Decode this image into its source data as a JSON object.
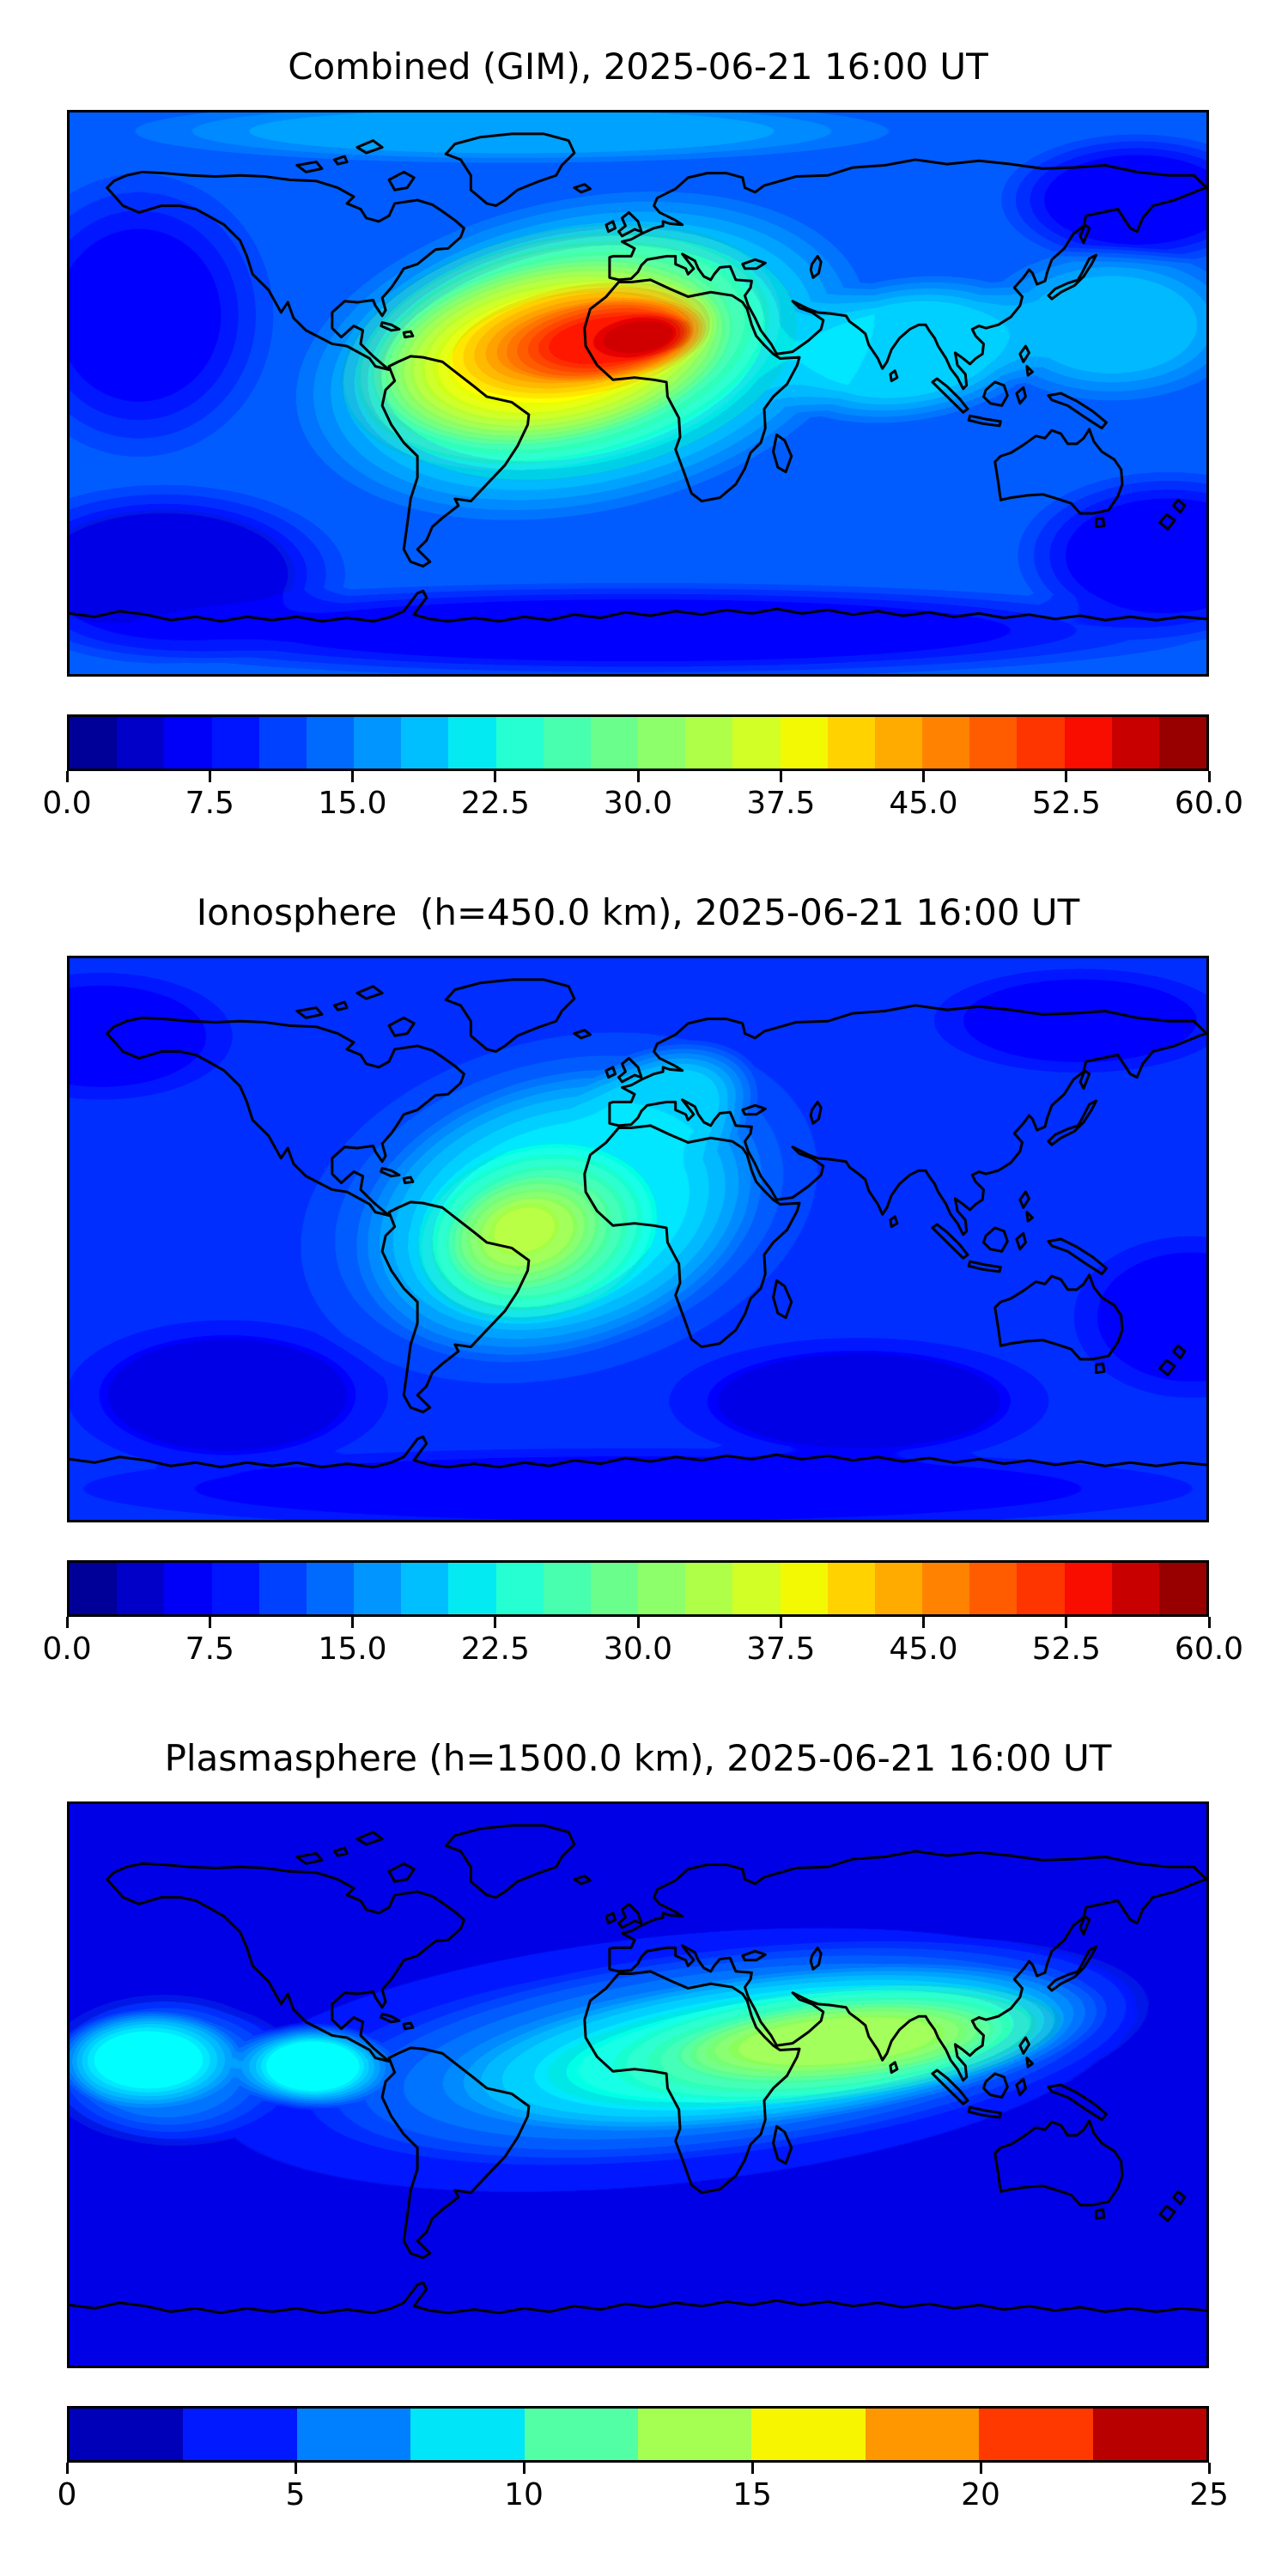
{
  "chart_data": [
    {
      "type": "heatmap",
      "variant": "filled_contour_world_map",
      "title": "Combined (GIM), 2025-06-21 16:00 UT",
      "colormap": "jet",
      "colormap_hex_anchors": [
        "#000080",
        "#0000FF",
        "#00FFFF",
        "#7CFF79",
        "#FFFF00",
        "#FF0000",
        "#800000"
      ],
      "extent": {
        "lon": [
          -180,
          180
        ],
        "lat": [
          -90,
          90
        ]
      },
      "grid": false,
      "coastlines": true,
      "colorbar": {
        "min": 0,
        "max": 60,
        "segments": 24,
        "orientation": "horizontal",
        "ticks": [
          {
            "v": 0,
            "label": "0.0"
          },
          {
            "v": 7.5,
            "label": "7.5"
          },
          {
            "v": 15,
            "label": "15.0"
          },
          {
            "v": 22.5,
            "label": "22.5"
          },
          {
            "v": 30,
            "label": "30.0"
          },
          {
            "v": 37.5,
            "label": "37.5"
          },
          {
            "v": 45,
            "label": "45.0"
          },
          {
            "v": 52.5,
            "label": "52.5"
          },
          {
            "v": 60,
            "label": "60.0"
          }
        ]
      },
      "base_value": 13,
      "peak": {
        "value_approx": 58,
        "lon_approx": -10,
        "lat_approx": 18
      },
      "description": "Total electron content: intense crest (~55-60) over equatorial Atlantic, northern South America and North Africa; low values (~3-8) near poles and night-side Pacific.",
      "approx_field": [
        {
          "lon": -158,
          "lat": 25,
          "rx": 45,
          "ry": 48,
          "tilt": 0,
          "value": 8.5
        },
        {
          "lon": -150,
          "lat": -58,
          "rx": 60,
          "ry": 30,
          "tilt": 0,
          "value": 5
        },
        {
          "lon": 168,
          "lat": -52,
          "rx": 50,
          "ry": 28,
          "tilt": 0,
          "value": 6
        },
        {
          "lon": 158,
          "lat": 62,
          "rx": 45,
          "ry": 22,
          "tilt": 0,
          "value": 7
        },
        {
          "lon": 0,
          "lat": -76,
          "rx": 190,
          "ry": 16,
          "tilt": 0,
          "value": 8
        },
        {
          "lon": -40,
          "lat": 84,
          "rx": 130,
          "ry": 11,
          "tilt": 0,
          "value": 17
        },
        {
          "lon": 150,
          "lat": 22,
          "rx": 45,
          "ry": 26,
          "tilt": 0,
          "value": 18
        },
        {
          "lon": 85,
          "lat": 14,
          "rx": 48,
          "ry": 24,
          "tilt": -8,
          "value": 20
        },
        {
          "lon": -18,
          "lat": 12,
          "rx": 95,
          "ry": 52,
          "tilt": -12,
          "value": 23
        },
        {
          "lon": -25,
          "lat": 15,
          "rx": 72,
          "ry": 38,
          "tilt": -12,
          "value": 30
        },
        {
          "lon": -27,
          "lat": 13,
          "rx": 58,
          "ry": 29,
          "tilt": -10,
          "value": 38
        },
        {
          "lon": -18,
          "lat": 17,
          "rx": 45,
          "ry": 19,
          "tilt": -10,
          "value": 46
        },
        {
          "lon": -10,
          "lat": 17,
          "rx": 33,
          "ry": 13,
          "tilt": -8,
          "value": 52
        },
        {
          "lon": 0,
          "lat": 18,
          "rx": 18,
          "ry": 8,
          "tilt": -8,
          "value": 56
        }
      ]
    },
    {
      "type": "heatmap",
      "variant": "filled_contour_world_map",
      "title": "Ionosphere  (h=450.0 km), 2025-06-21 16:00 UT",
      "colormap": "jet",
      "extent": {
        "lon": [
          -180,
          180
        ],
        "lat": [
          -90,
          90
        ]
      },
      "grid": false,
      "coastlines": true,
      "colorbar": {
        "min": 0,
        "max": 60,
        "segments": 24,
        "orientation": "horizontal",
        "ticks": [
          {
            "v": 0,
            "label": "0.0"
          },
          {
            "v": 7.5,
            "label": "7.5"
          },
          {
            "v": 15,
            "label": "15.0"
          },
          {
            "v": 22.5,
            "label": "22.5"
          },
          {
            "v": 30,
            "label": "30.0"
          },
          {
            "v": 37.5,
            "label": "37.5"
          },
          {
            "v": 45,
            "label": "45.0"
          },
          {
            "v": 52.5,
            "label": "52.5"
          },
          {
            "v": 60,
            "label": "60.0"
          }
        ]
      },
      "base_value": 10.5,
      "peak": {
        "value_approx": 34,
        "lon_approx": -36,
        "lat_approx": 2
      },
      "description": "Ionospheric slab: moderate maximum (~32-35, yellow) over equatorial Atlantic between Brazil and West Africa, cyan halo reaching Europe; dark blue (~4-6) at poles and southern oceans.",
      "approx_field": [
        {
          "lon": -170,
          "lat": 65,
          "rx": 45,
          "ry": 22,
          "tilt": 0,
          "value": 7
        },
        {
          "lon": 140,
          "lat": 70,
          "rx": 50,
          "ry": 18,
          "tilt": 0,
          "value": 6
        },
        {
          "lon": -130,
          "lat": -50,
          "rx": 55,
          "ry": 26,
          "tilt": 0,
          "value": 5
        },
        {
          "lon": 70,
          "lat": -52,
          "rx": 65,
          "ry": 22,
          "tilt": 0,
          "value": 5
        },
        {
          "lon": 175,
          "lat": -25,
          "rx": 40,
          "ry": 28,
          "tilt": 0,
          "value": 7
        },
        {
          "lon": 0,
          "lat": -80,
          "rx": 190,
          "ry": 14,
          "tilt": 0,
          "value": 6
        },
        {
          "lon": -25,
          "lat": 10,
          "rx": 90,
          "ry": 58,
          "tilt": -15,
          "value": 15
        },
        {
          "lon": 8,
          "lat": 42,
          "rx": 32,
          "ry": 20,
          "tilt": -20,
          "value": 19
        },
        {
          "lon": -25,
          "lat": 8,
          "rx": 68,
          "ry": 45,
          "tilt": -18,
          "value": 21
        },
        {
          "lon": -32,
          "lat": 2,
          "rx": 42,
          "ry": 30,
          "tilt": -15,
          "value": 27
        },
        {
          "lon": -35,
          "lat": 2,
          "rx": 26,
          "ry": 18,
          "tilt": -15,
          "value": 32
        },
        {
          "lon": -36,
          "lat": 3,
          "rx": 14,
          "ry": 10,
          "tilt": -15,
          "value": 34
        }
      ]
    },
    {
      "type": "heatmap",
      "variant": "filled_contour_world_map",
      "title": "Plasmasphere (h=1500.0 km), 2025-06-21 16:00 UT",
      "colormap": "jet",
      "extent": {
        "lon": [
          -180,
          180
        ],
        "lat": [
          -90,
          90
        ]
      },
      "grid": false,
      "coastlines": true,
      "colorbar": {
        "min": 0,
        "max": 25,
        "segments": 10,
        "orientation": "horizontal",
        "ticks": [
          {
            "v": 0,
            "label": "0"
          },
          {
            "v": 5,
            "label": "5"
          },
          {
            "v": 10,
            "label": "10"
          },
          {
            "v": 15,
            "label": "15"
          },
          {
            "v": 20,
            "label": "20"
          },
          {
            "v": 25,
            "label": "25"
          }
        ]
      },
      "base_value": 2,
      "peak": {
        "value_approx": 14,
        "lon_approx": 63,
        "lat_approx": 14
      },
      "description": "Plasmaspheric content: low-latitude band (cyan to green-yellow, ~8-15) peaking over Africa, Arabia, India and Southeast Asia; dark blue (~0-3) poleward of ±45 deg.",
      "approx_field": [
        {
          "lon": 10,
          "lat": 8,
          "rx": 175,
          "ry": 48,
          "tilt": -6,
          "value": 4.5
        },
        {
          "lon": -150,
          "lat": 5,
          "rx": 42,
          "ry": 26,
          "tilt": 0,
          "value": 6
        },
        {
          "lon": 30,
          "lat": 11,
          "rx": 135,
          "ry": 33,
          "tilt": -7,
          "value": 7
        },
        {
          "lon": -155,
          "lat": 8,
          "rx": 30,
          "ry": 16,
          "tilt": 0,
          "value": 9
        },
        {
          "lon": -103,
          "lat": 6,
          "rx": 26,
          "ry": 14,
          "tilt": 0,
          "value": 9
        },
        {
          "lon": 45,
          "lat": 12,
          "rx": 105,
          "ry": 24,
          "tilt": -7,
          "value": 9.5
        },
        {
          "lon": 62,
          "lat": 13,
          "rx": 75,
          "ry": 18,
          "tilt": -6,
          "value": 11.5
        },
        {
          "lon": 63,
          "lat": 14,
          "rx": 52,
          "ry": 12,
          "tilt": -5,
          "value": 13.5
        }
      ]
    }
  ]
}
